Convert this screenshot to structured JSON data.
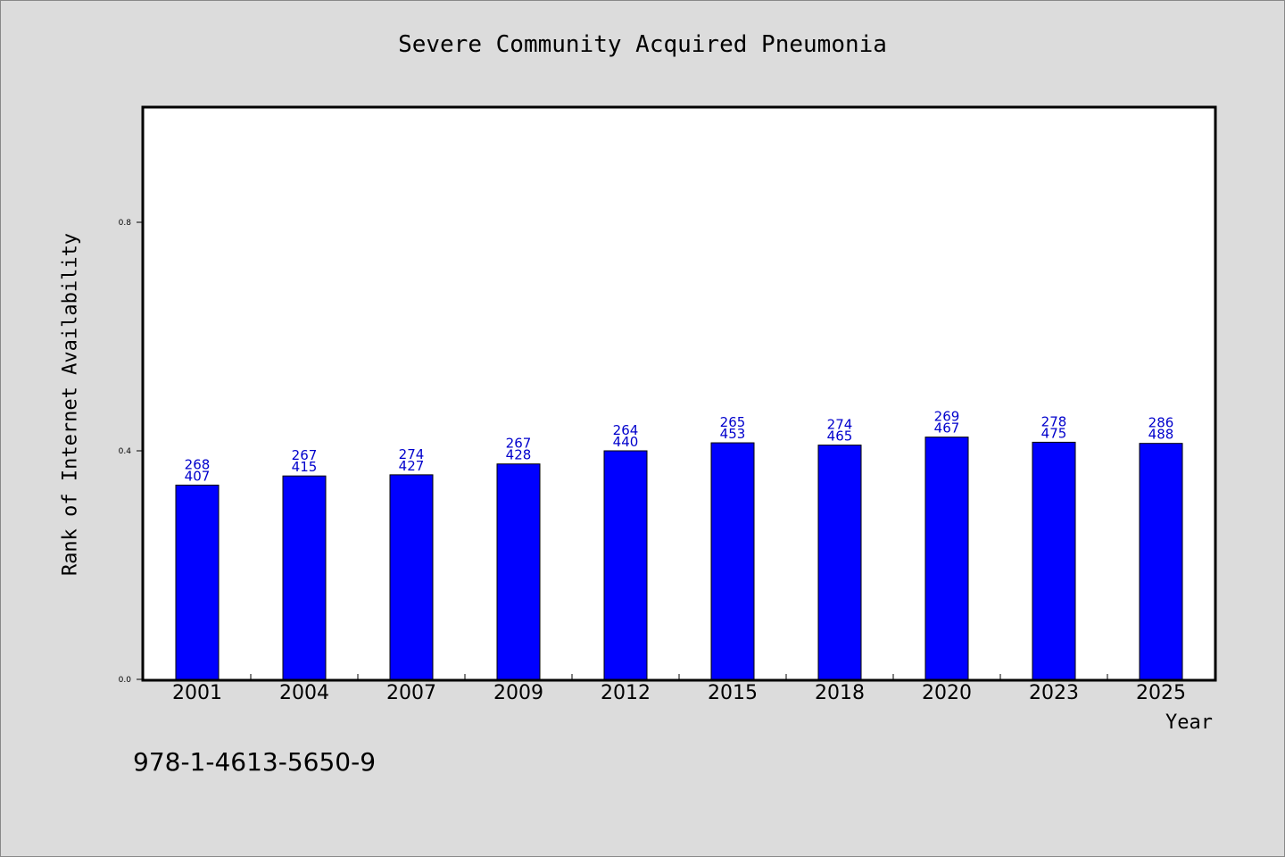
{
  "chart_data": {
    "type": "bar",
    "title": "Severe Community Acquired Pneumonia",
    "xlabel": "Year",
    "ylabel": "Rank of Internet Availability",
    "categories": [
      "2001",
      "2004",
      "2007",
      "2009",
      "2012",
      "2015",
      "2018",
      "2020",
      "2023",
      "2025"
    ],
    "values": [
      0.34,
      0.356,
      0.358,
      0.377,
      0.4,
      0.414,
      0.41,
      0.424,
      0.415,
      0.413
    ],
    "annotations": [
      [
        "268",
        "407"
      ],
      [
        "267",
        "415"
      ],
      [
        "274",
        "427"
      ],
      [
        "267",
        "428"
      ],
      [
        "264",
        "440"
      ],
      [
        "265",
        "453"
      ],
      [
        "274",
        "465"
      ],
      [
        "269",
        "467"
      ],
      [
        "278",
        "475"
      ],
      [
        "286",
        "488"
      ]
    ],
    "ylim": [
      0,
      1.0
    ],
    "yticks": [
      "0.0",
      "0.4",
      "0.8"
    ],
    "ytick_values": [
      0,
      0.4,
      0.8
    ],
    "grid": false,
    "bar_color": "#0000ff",
    "label_color": "#0000cc",
    "background": "#dcdcdc",
    "plot_background": "#ffffff"
  },
  "footer": {
    "identifier": "978-1-4613-5650-9"
  }
}
